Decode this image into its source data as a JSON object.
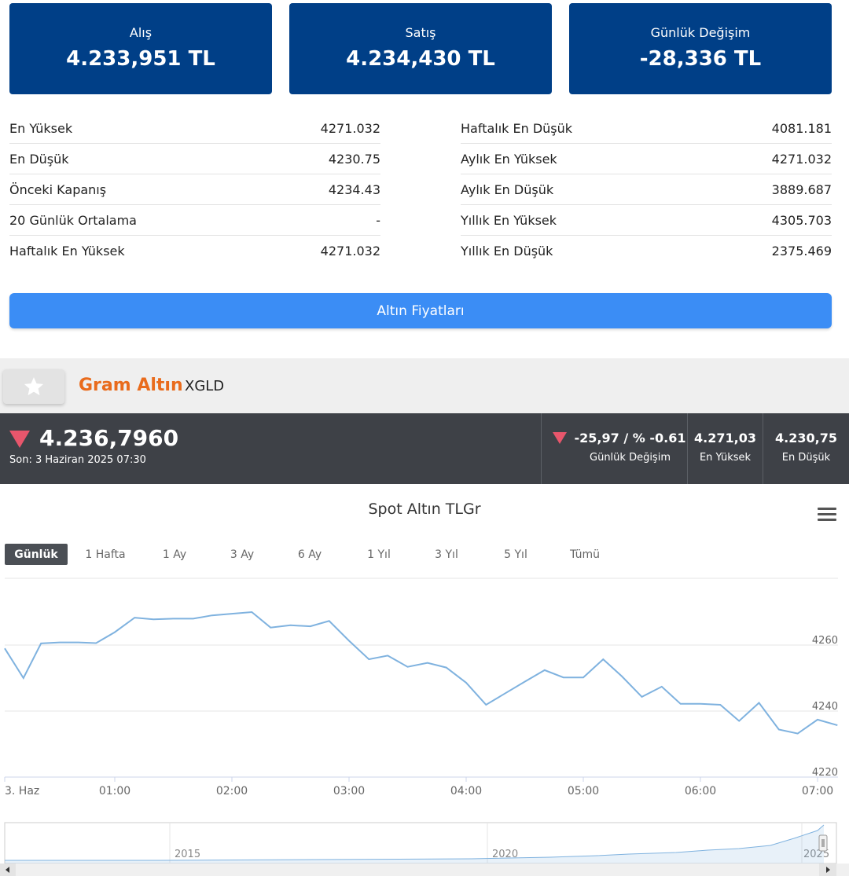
{
  "cards": {
    "buy": {
      "label": "Alış",
      "value": "4.233,951 TL"
    },
    "sell": {
      "label": "Satış",
      "value": "4.234,430 TL"
    },
    "change": {
      "label": "Günlük Değişim",
      "value": "-28,336 TL"
    }
  },
  "stats_left": [
    {
      "label": "En Yüksek",
      "value": "4271.032"
    },
    {
      "label": "En Düşük",
      "value": "4230.75"
    },
    {
      "label": "Önceki Kapanış",
      "value": "4234.43"
    },
    {
      "label": "20 Günlük Ortalama",
      "value": "-"
    },
    {
      "label": "Haftalık En Yüksek",
      "value": "4271.032"
    }
  ],
  "stats_right": [
    {
      "label": "Haftalık En Düşük",
      "value": "4081.181"
    },
    {
      "label": "Aylık En Yüksek",
      "value": "4271.032"
    },
    {
      "label": "Aylık En Düşük",
      "value": "3889.687"
    },
    {
      "label": "Yıllık En Yüksek",
      "value": "4305.703"
    },
    {
      "label": "Yıllık En Düşük",
      "value": "2375.469"
    }
  ],
  "button": {
    "label": "Altın Fiyatları"
  },
  "asset": {
    "title": "Gram Altın",
    "code": "XGLD"
  },
  "ticker": {
    "price": "4.236,7960",
    "time": "Son: 3 Haziran 2025 07:30",
    "change_value": "-25,97 / % -0.61",
    "change_label": "Günlük Değişim",
    "high_value": "4.271,03",
    "high_label": "En Yüksek",
    "low_value": "4.230,75",
    "low_label": "En Düşük"
  },
  "colors": {
    "card_bg": "#003f87",
    "button_bg": "#3b8df5",
    "title_orange": "#e96b1c",
    "ticker_bg": "#3e4147",
    "down_red": "#e8566c",
    "line_blue": "#7fb2df"
  },
  "icons": {
    "favorite": "star-icon",
    "menu": "hamburger-menu-icon",
    "trend": "down-triangle-icon"
  },
  "range_buttons": [
    "Günlük",
    "1 Hafta",
    "1 Ay",
    "3 Ay",
    "6 Ay",
    "1 Yıl",
    "3 Yıl",
    "5 Yıl",
    "Tümü"
  ],
  "range_active": "Günlük",
  "chart_data": {
    "type": "line",
    "title": "Spot Altın TLGr",
    "x_ticks": [
      "3. Haz",
      "01:00",
      "02:00",
      "03:00",
      "04:00",
      "05:00",
      "06:00",
      "07:00"
    ],
    "y_ticks": [
      4220,
      4240,
      4260
    ],
    "ylim": [
      4220,
      4270
    ],
    "x_hours": [
      0.0,
      0.17,
      0.33,
      0.5,
      0.67,
      0.83,
      1.0,
      1.17,
      1.33,
      1.5,
      1.67,
      1.83,
      2.0,
      2.17,
      2.33,
      2.5,
      2.67,
      2.83,
      3.0,
      3.17,
      3.33,
      3.5,
      3.67,
      3.83,
      4.0,
      4.17,
      4.33,
      4.5,
      4.67,
      4.83,
      5.0,
      5.17,
      5.33,
      5.5,
      5.67,
      5.83,
      6.0,
      6.17,
      6.33,
      6.5,
      6.67,
      6.83,
      7.0,
      7.17
    ],
    "values": [
      4259,
      4250,
      4260.5,
      4260.8,
      4260.8,
      4260.6,
      4263.9,
      4268.3,
      4267.8,
      4268,
      4268,
      4269,
      4269.5,
      4270,
      4265.3,
      4266,
      4265.7,
      4267.3,
      4261.3,
      4255.7,
      4256.8,
      4253.4,
      4254.6,
      4253.2,
      4248.6,
      4241.9,
      4245.3,
      4248.9,
      4252.4,
      4250.2,
      4250.2,
      4255.7,
      4250.5,
      4244.3,
      4247.4,
      4242.2,
      4242.2,
      4241.9,
      4237,
      4242.5,
      4234.4,
      4233.2,
      4237.4,
      4235.7
    ],
    "grid": true,
    "navigator_ticks": [
      "2015",
      "2020",
      "2025"
    ]
  }
}
